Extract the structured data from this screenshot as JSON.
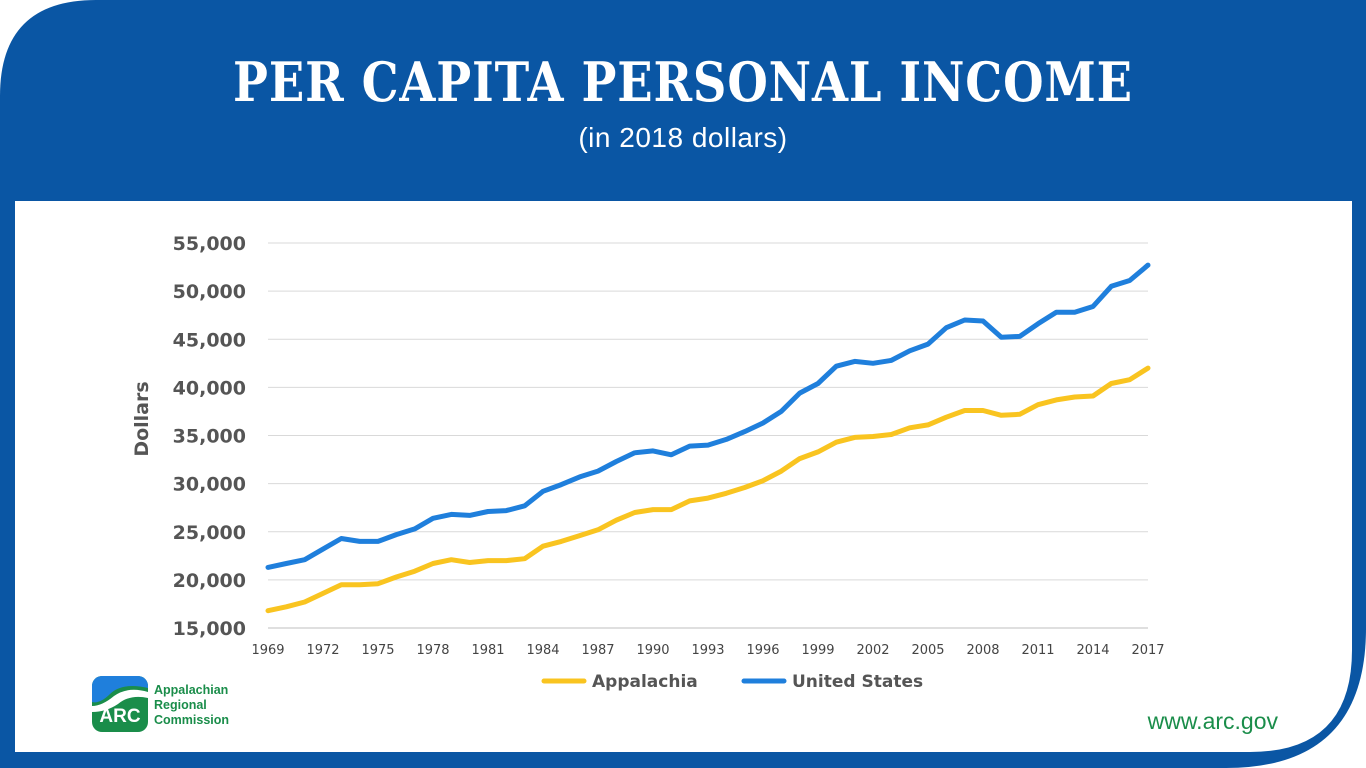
{
  "page": {
    "title": "PER CAPITA PERSONAL INCOME",
    "subtitle": "(in 2018 dollars)",
    "website": "www.arc.gov",
    "logo": {
      "mark_text": "ARC",
      "words": [
        "Appalachian",
        "Regional",
        "Commission"
      ]
    },
    "colors": {
      "frame_blue": "#0a56a4",
      "appalachia": "#f9c420",
      "united_states": "#1f7fdc",
      "brand_green": "#1a8d4a"
    }
  },
  "chart_data": {
    "type": "line",
    "ylabel": "Dollars",
    "xlabel": "",
    "ylim": [
      15000,
      55000
    ],
    "yticks": [
      15000,
      20000,
      25000,
      30000,
      35000,
      40000,
      45000,
      50000,
      55000
    ],
    "ytick_labels": [
      "15,000",
      "20,000",
      "25,000",
      "30,000",
      "35,000",
      "40,000",
      "45,000",
      "50,000",
      "55,000"
    ],
    "xlim": [
      1969,
      2017
    ],
    "xticks": [
      1969,
      1972,
      1975,
      1978,
      1981,
      1984,
      1987,
      1990,
      1993,
      1996,
      1999,
      2002,
      2005,
      2008,
      2011,
      2014,
      2017
    ],
    "xtick_labels": [
      "1969",
      "1972",
      "1975",
      "1978",
      "1981",
      "1984",
      "1987",
      "1990",
      "1993",
      "1996",
      "1999",
      "2002",
      "2005",
      "2008",
      "2011",
      "2014",
      "2017"
    ],
    "grid": "horizontal",
    "legend_position": "bottom",
    "x": [
      1969,
      1970,
      1971,
      1972,
      1973,
      1974,
      1975,
      1976,
      1977,
      1978,
      1979,
      1980,
      1981,
      1982,
      1983,
      1984,
      1985,
      1986,
      1987,
      1988,
      1989,
      1990,
      1991,
      1992,
      1993,
      1994,
      1995,
      1996,
      1997,
      1998,
      1999,
      2000,
      2001,
      2002,
      2003,
      2004,
      2005,
      2006,
      2007,
      2008,
      2009,
      2010,
      2011,
      2012,
      2013,
      2014,
      2015,
      2016,
      2017
    ],
    "series": [
      {
        "name": "Appalachia",
        "values": [
          16800,
          17200,
          17700,
          18600,
          19500,
          19500,
          19600,
          20300,
          20900,
          21700,
          22100,
          21800,
          22000,
          22000,
          22200,
          23500,
          24000,
          24600,
          25200,
          26200,
          27000,
          27300,
          27300,
          28200,
          28500,
          29000,
          29600,
          30300,
          31300,
          32600,
          33300,
          34300,
          34800,
          34900,
          35100,
          35800,
          36100,
          36900,
          37600,
          37600,
          37100,
          37200,
          38200,
          38700,
          39000,
          39100,
          40400,
          40800,
          42000
        ]
      },
      {
        "name": "United States",
        "values": [
          21300,
          21700,
          22100,
          23200,
          24300,
          24000,
          24000,
          24700,
          25300,
          26400,
          26800,
          26700,
          27100,
          27200,
          27700,
          29200,
          29900,
          30700,
          31300,
          32300,
          33200,
          33400,
          33000,
          33900,
          34000,
          34600,
          35400,
          36300,
          37500,
          39400,
          40400,
          42200,
          42700,
          42500,
          42800,
          43800,
          44500,
          46200,
          47000,
          46900,
          45200,
          45300,
          46600,
          47800,
          47800,
          48400,
          50500,
          51100,
          52700
        ]
      }
    ]
  }
}
